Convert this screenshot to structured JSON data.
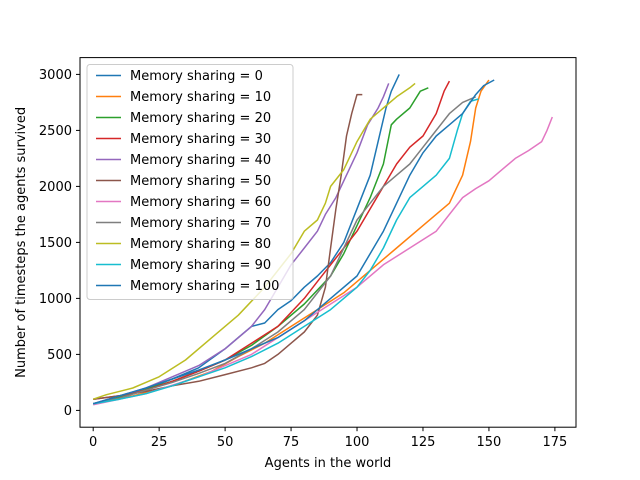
{
  "chart_data": {
    "type": "line",
    "xlabel": "Agents in the world",
    "ylabel": "Number of timesteps the agents survived",
    "xlim": [
      -5,
      183
    ],
    "ylim": [
      -150,
      3150
    ],
    "xticks": [
      0,
      25,
      50,
      75,
      100,
      125,
      150,
      175
    ],
    "yticks": [
      0,
      500,
      1000,
      1500,
      2000,
      2500,
      3000
    ],
    "grid": false,
    "legend_position": "upper-left",
    "series": [
      {
        "name": "Memory sharing = 0",
        "color": "#1f77b4",
        "x": [
          0,
          10,
          20,
          30,
          40,
          50,
          55,
          60,
          65,
          70,
          75,
          80,
          85,
          90,
          95,
          100,
          105,
          108,
          111,
          113,
          116
        ],
        "y": [
          60,
          120,
          190,
          280,
          380,
          550,
          650,
          750,
          780,
          900,
          980,
          1100,
          1200,
          1320,
          1500,
          1800,
          2100,
          2400,
          2700,
          2850,
          3000
        ]
      },
      {
        "name": "Memory sharing = 10",
        "color": "#ff7f0e",
        "x": [
          0,
          15,
          30,
          45,
          55,
          65,
          75,
          85,
          95,
          105,
          115,
          125,
          135,
          140,
          143,
          145,
          147,
          150
        ],
        "y": [
          60,
          130,
          220,
          350,
          480,
          600,
          750,
          900,
          1050,
          1250,
          1450,
          1650,
          1850,
          2100,
          2400,
          2700,
          2850,
          2950
        ]
      },
      {
        "name": "Memory sharing = 20",
        "color": "#2ca02c",
        "x": [
          0,
          10,
          20,
          30,
          40,
          50,
          60,
          70,
          80,
          90,
          95,
          100,
          105,
          110,
          113,
          115,
          120,
          124,
          127
        ],
        "y": [
          60,
          120,
          190,
          260,
          350,
          450,
          580,
          750,
          950,
          1200,
          1400,
          1650,
          1900,
          2200,
          2550,
          2600,
          2700,
          2850,
          2880
        ]
      },
      {
        "name": "Memory sharing = 30",
        "color": "#d62728",
        "x": [
          0,
          10,
          20,
          30,
          40,
          50,
          60,
          70,
          80,
          85,
          90,
          95,
          100,
          105,
          110,
          115,
          120,
          125,
          130,
          133,
          135
        ],
        "y": [
          100,
          130,
          180,
          260,
          350,
          450,
          600,
          750,
          1000,
          1150,
          1300,
          1450,
          1600,
          1800,
          2000,
          2200,
          2350,
          2450,
          2650,
          2850,
          2940
        ]
      },
      {
        "name": "Memory sharing = 40",
        "color": "#9467bd",
        "x": [
          0,
          10,
          20,
          30,
          40,
          50,
          60,
          65,
          70,
          75,
          80,
          85,
          88,
          92,
          95,
          100,
          104,
          108,
          110,
          112
        ],
        "y": [
          60,
          130,
          200,
          300,
          400,
          550,
          750,
          900,
          1100,
          1300,
          1450,
          1600,
          1750,
          1900,
          2050,
          2300,
          2550,
          2700,
          2800,
          2920
        ]
      },
      {
        "name": "Memory sharing = 50",
        "color": "#8c564b",
        "x": [
          0,
          10,
          20,
          30,
          40,
          50,
          60,
          65,
          70,
          75,
          80,
          85,
          88,
          90,
          92,
          94,
          96,
          98,
          100,
          102
        ],
        "y": [
          100,
          130,
          170,
          220,
          260,
          320,
          380,
          420,
          500,
          600,
          700,
          850,
          1100,
          1450,
          1800,
          2100,
          2450,
          2650,
          2820,
          2820
        ]
      },
      {
        "name": "Memory sharing = 60",
        "color": "#e377c2",
        "x": [
          0,
          20,
          40,
          60,
          80,
          90,
          100,
          110,
          120,
          130,
          140,
          145,
          150,
          155,
          160,
          165,
          170,
          172,
          174
        ],
        "y": [
          50,
          150,
          300,
          500,
          800,
          950,
          1100,
          1300,
          1450,
          1600,
          1900,
          1980,
          2050,
          2150,
          2250,
          2320,
          2400,
          2500,
          2620
        ]
      },
      {
        "name": "Memory sharing = 70",
        "color": "#7f7f7f",
        "x": [
          0,
          10,
          20,
          30,
          40,
          50,
          60,
          70,
          80,
          90,
          95,
          100,
          105,
          110,
          115,
          120,
          125,
          130,
          135,
          140,
          145
        ],
        "y": [
          60,
          110,
          180,
          250,
          330,
          420,
          550,
          700,
          900,
          1200,
          1450,
          1700,
          1850,
          2000,
          2100,
          2200,
          2350,
          2500,
          2650,
          2750,
          2800
        ]
      },
      {
        "name": "Memory sharing = 80",
        "color": "#bcbd22",
        "x": [
          0,
          5,
          15,
          25,
          35,
          45,
          55,
          65,
          75,
          80,
          85,
          88,
          90,
          95,
          100,
          105,
          110,
          115,
          120,
          122
        ],
        "y": [
          100,
          140,
          200,
          300,
          450,
          650,
          850,
          1100,
          1400,
          1600,
          1700,
          1850,
          2000,
          2150,
          2400,
          2600,
          2700,
          2800,
          2880,
          2920
        ]
      },
      {
        "name": "Memory sharing = 90",
        "color": "#17becf",
        "x": [
          0,
          10,
          20,
          30,
          40,
          50,
          60,
          70,
          80,
          90,
          100,
          105,
          110,
          115,
          120,
          125,
          130,
          135,
          138,
          140,
          143,
          146
        ],
        "y": [
          60,
          100,
          150,
          220,
          300,
          380,
          480,
          600,
          750,
          900,
          1100,
          1250,
          1450,
          1700,
          1900,
          2000,
          2100,
          2250,
          2500,
          2650,
          2760,
          2780
        ]
      },
      {
        "name": "Memory sharing = 100",
        "color": "#1f77b4",
        "x": [
          0,
          10,
          20,
          30,
          40,
          50,
          60,
          70,
          80,
          90,
          100,
          105,
          110,
          115,
          120,
          125,
          130,
          135,
          140,
          145,
          148,
          152
        ],
        "y": [
          60,
          130,
          200,
          280,
          360,
          450,
          550,
          650,
          800,
          1000,
          1200,
          1400,
          1600,
          1850,
          2100,
          2300,
          2450,
          2550,
          2650,
          2820,
          2900,
          2950
        ]
      }
    ]
  }
}
